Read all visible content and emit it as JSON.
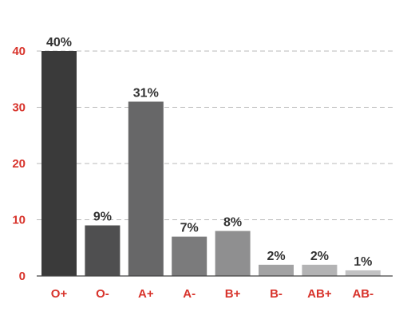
{
  "chart_data": {
    "type": "bar",
    "categories": [
      "O+",
      "O-",
      "A+",
      "A-",
      "B+",
      "B-",
      "AB+",
      "AB-"
    ],
    "values": [
      40,
      9,
      31,
      7,
      8,
      2,
      2,
      1
    ],
    "data_labels": [
      "40%",
      "9%",
      "31%",
      "7%",
      "8%",
      "2%",
      "2%",
      "1%"
    ],
    "y_ticks": [
      "0",
      "10",
      "20",
      "30",
      "40"
    ],
    "title": "",
    "xlabel": "",
    "ylabel": "",
    "ylim": [
      0,
      45
    ],
    "grid": true,
    "bar_colors": [
      "#3a3a3a",
      "#4f4f50",
      "#676768",
      "#7b7b7c",
      "#8f8f90",
      "#a2a2a3",
      "#b3b3b4",
      "#c2c2c3"
    ],
    "tick_label_color": "#d8342c"
  }
}
